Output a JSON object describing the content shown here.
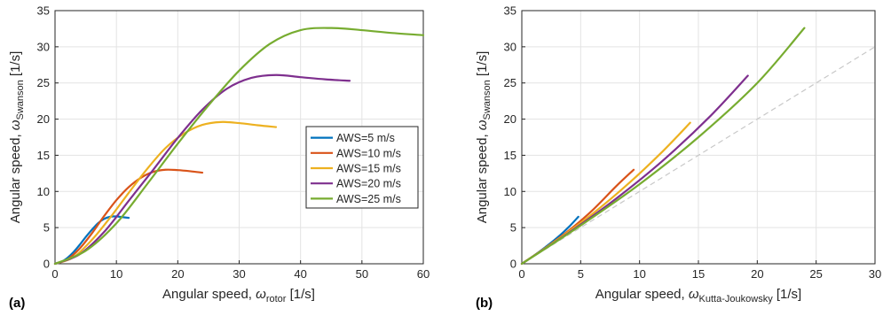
{
  "chart_data": [
    {
      "type": "line",
      "panel_label": "(a)",
      "xlabel": {
        "main": "Angular speed, ",
        "sym": "ω",
        "sub": "rotor",
        "unit": " [1/s]"
      },
      "ylabel": {
        "main": "Angular speed, ",
        "sym": "ω",
        "sub": "Swanson",
        "unit": " [1/s]"
      },
      "xlim": [
        0,
        60
      ],
      "ylim": [
        0,
        35
      ],
      "xticks": [
        "0",
        "10",
        "20",
        "30",
        "40",
        "50",
        "60"
      ],
      "yticks": [
        "0",
        "5",
        "10",
        "15",
        "20",
        "25",
        "30",
        "35"
      ],
      "grid": true,
      "legend": {
        "placement": "right-middle"
      },
      "series": [
        {
          "name": "AWS=5 m/s",
          "color": "#0072BD",
          "x": [
            0,
            1,
            2,
            3,
            4,
            5,
            6,
            7,
            8,
            9,
            10,
            11,
            12
          ],
          "y": [
            0,
            0.25,
            0.8,
            1.6,
            2.6,
            3.7,
            4.7,
            5.6,
            6.2,
            6.5,
            6.55,
            6.45,
            6.35
          ]
        },
        {
          "name": "AWS=10 m/s",
          "color": "#D95319",
          "x": [
            0,
            2,
            4,
            6,
            8,
            10,
            12,
            14,
            16,
            18,
            20,
            22,
            24
          ],
          "y": [
            0,
            0.6,
            2.1,
            4.2,
            6.6,
            8.8,
            10.6,
            11.9,
            12.7,
            13.0,
            12.95,
            12.8,
            12.6
          ]
        },
        {
          "name": "AWS=15 m/s",
          "color": "#EDB120",
          "x": [
            0,
            3,
            6,
            9,
            12,
            15,
            18,
            21,
            24,
            27,
            30,
            33,
            36
          ],
          "y": [
            0,
            0.9,
            3.3,
            6.4,
            9.8,
            13.1,
            16.0,
            18.0,
            19.2,
            19.6,
            19.45,
            19.15,
            18.9
          ]
        },
        {
          "name": "AWS=20 m/s",
          "color": "#7E2F8E",
          "x": [
            0,
            4,
            8,
            12,
            16,
            20,
            24,
            28,
            32,
            36,
            40,
            44,
            48
          ],
          "y": [
            0,
            1.3,
            4.4,
            8.7,
            13.0,
            17.4,
            21.3,
            24.2,
            25.7,
            26.1,
            25.8,
            25.5,
            25.3
          ]
        },
        {
          "name": "AWS=25 m/s",
          "color": "#77AC30",
          "x": [
            0,
            5,
            10,
            15,
            20,
            25,
            30,
            35,
            40,
            45,
            50,
            55,
            60
          ],
          "y": [
            0,
            1.8,
            5.6,
            11.0,
            16.6,
            21.9,
            26.7,
            30.4,
            32.3,
            32.6,
            32.3,
            31.9,
            31.6
          ]
        }
      ]
    },
    {
      "type": "line",
      "panel_label": "(b)",
      "xlabel": {
        "main": "Angular speed, ",
        "sym": "ω",
        "sub": "Kutta-Joukowsky",
        "unit": " [1/s]"
      },
      "ylabel": {
        "main": "Angular speed, ",
        "sym": "ω",
        "sub": "Swanson",
        "unit": " [1/s]"
      },
      "xlim": [
        0,
        30
      ],
      "ylim": [
        0,
        35
      ],
      "xticks": [
        "0",
        "5",
        "10",
        "15",
        "20",
        "25",
        "30"
      ],
      "yticks": [
        "0",
        "5",
        "10",
        "15",
        "20",
        "25",
        "30",
        "35"
      ],
      "grid": true,
      "reference_line": {
        "x": [
          0,
          30
        ],
        "y": [
          0,
          30
        ],
        "color": "#c8c8c8",
        "style": "dashed"
      },
      "series": [
        {
          "name": "AWS=5 m/s",
          "color": "#0072BD",
          "x": [
            0,
            1,
            2,
            3,
            4,
            4.8
          ],
          "y": [
            0,
            1.1,
            2.3,
            3.6,
            5.1,
            6.5
          ]
        },
        {
          "name": "AWS=10 m/s",
          "color": "#D95319",
          "x": [
            0,
            2,
            4,
            6,
            8,
            9.5
          ],
          "y": [
            0,
            2.2,
            4.6,
            7.4,
            10.7,
            13.0
          ]
        },
        {
          "name": "AWS=15 m/s",
          "color": "#EDB120",
          "x": [
            0,
            3,
            6,
            9,
            12,
            14.3
          ],
          "y": [
            0,
            3.3,
            6.9,
            11.0,
            15.6,
            19.5
          ]
        },
        {
          "name": "AWS=20 m/s",
          "color": "#7E2F8E",
          "x": [
            0,
            4,
            8,
            12,
            16,
            19.2
          ],
          "y": [
            0,
            4.3,
            9.0,
            14.3,
            20.4,
            26.0
          ]
        },
        {
          "name": "AWS=25 m/s",
          "color": "#77AC30",
          "x": [
            0,
            5,
            10,
            15,
            20,
            24.0
          ],
          "y": [
            0,
            5.3,
            11.0,
            17.5,
            25.0,
            32.6
          ]
        }
      ]
    }
  ]
}
